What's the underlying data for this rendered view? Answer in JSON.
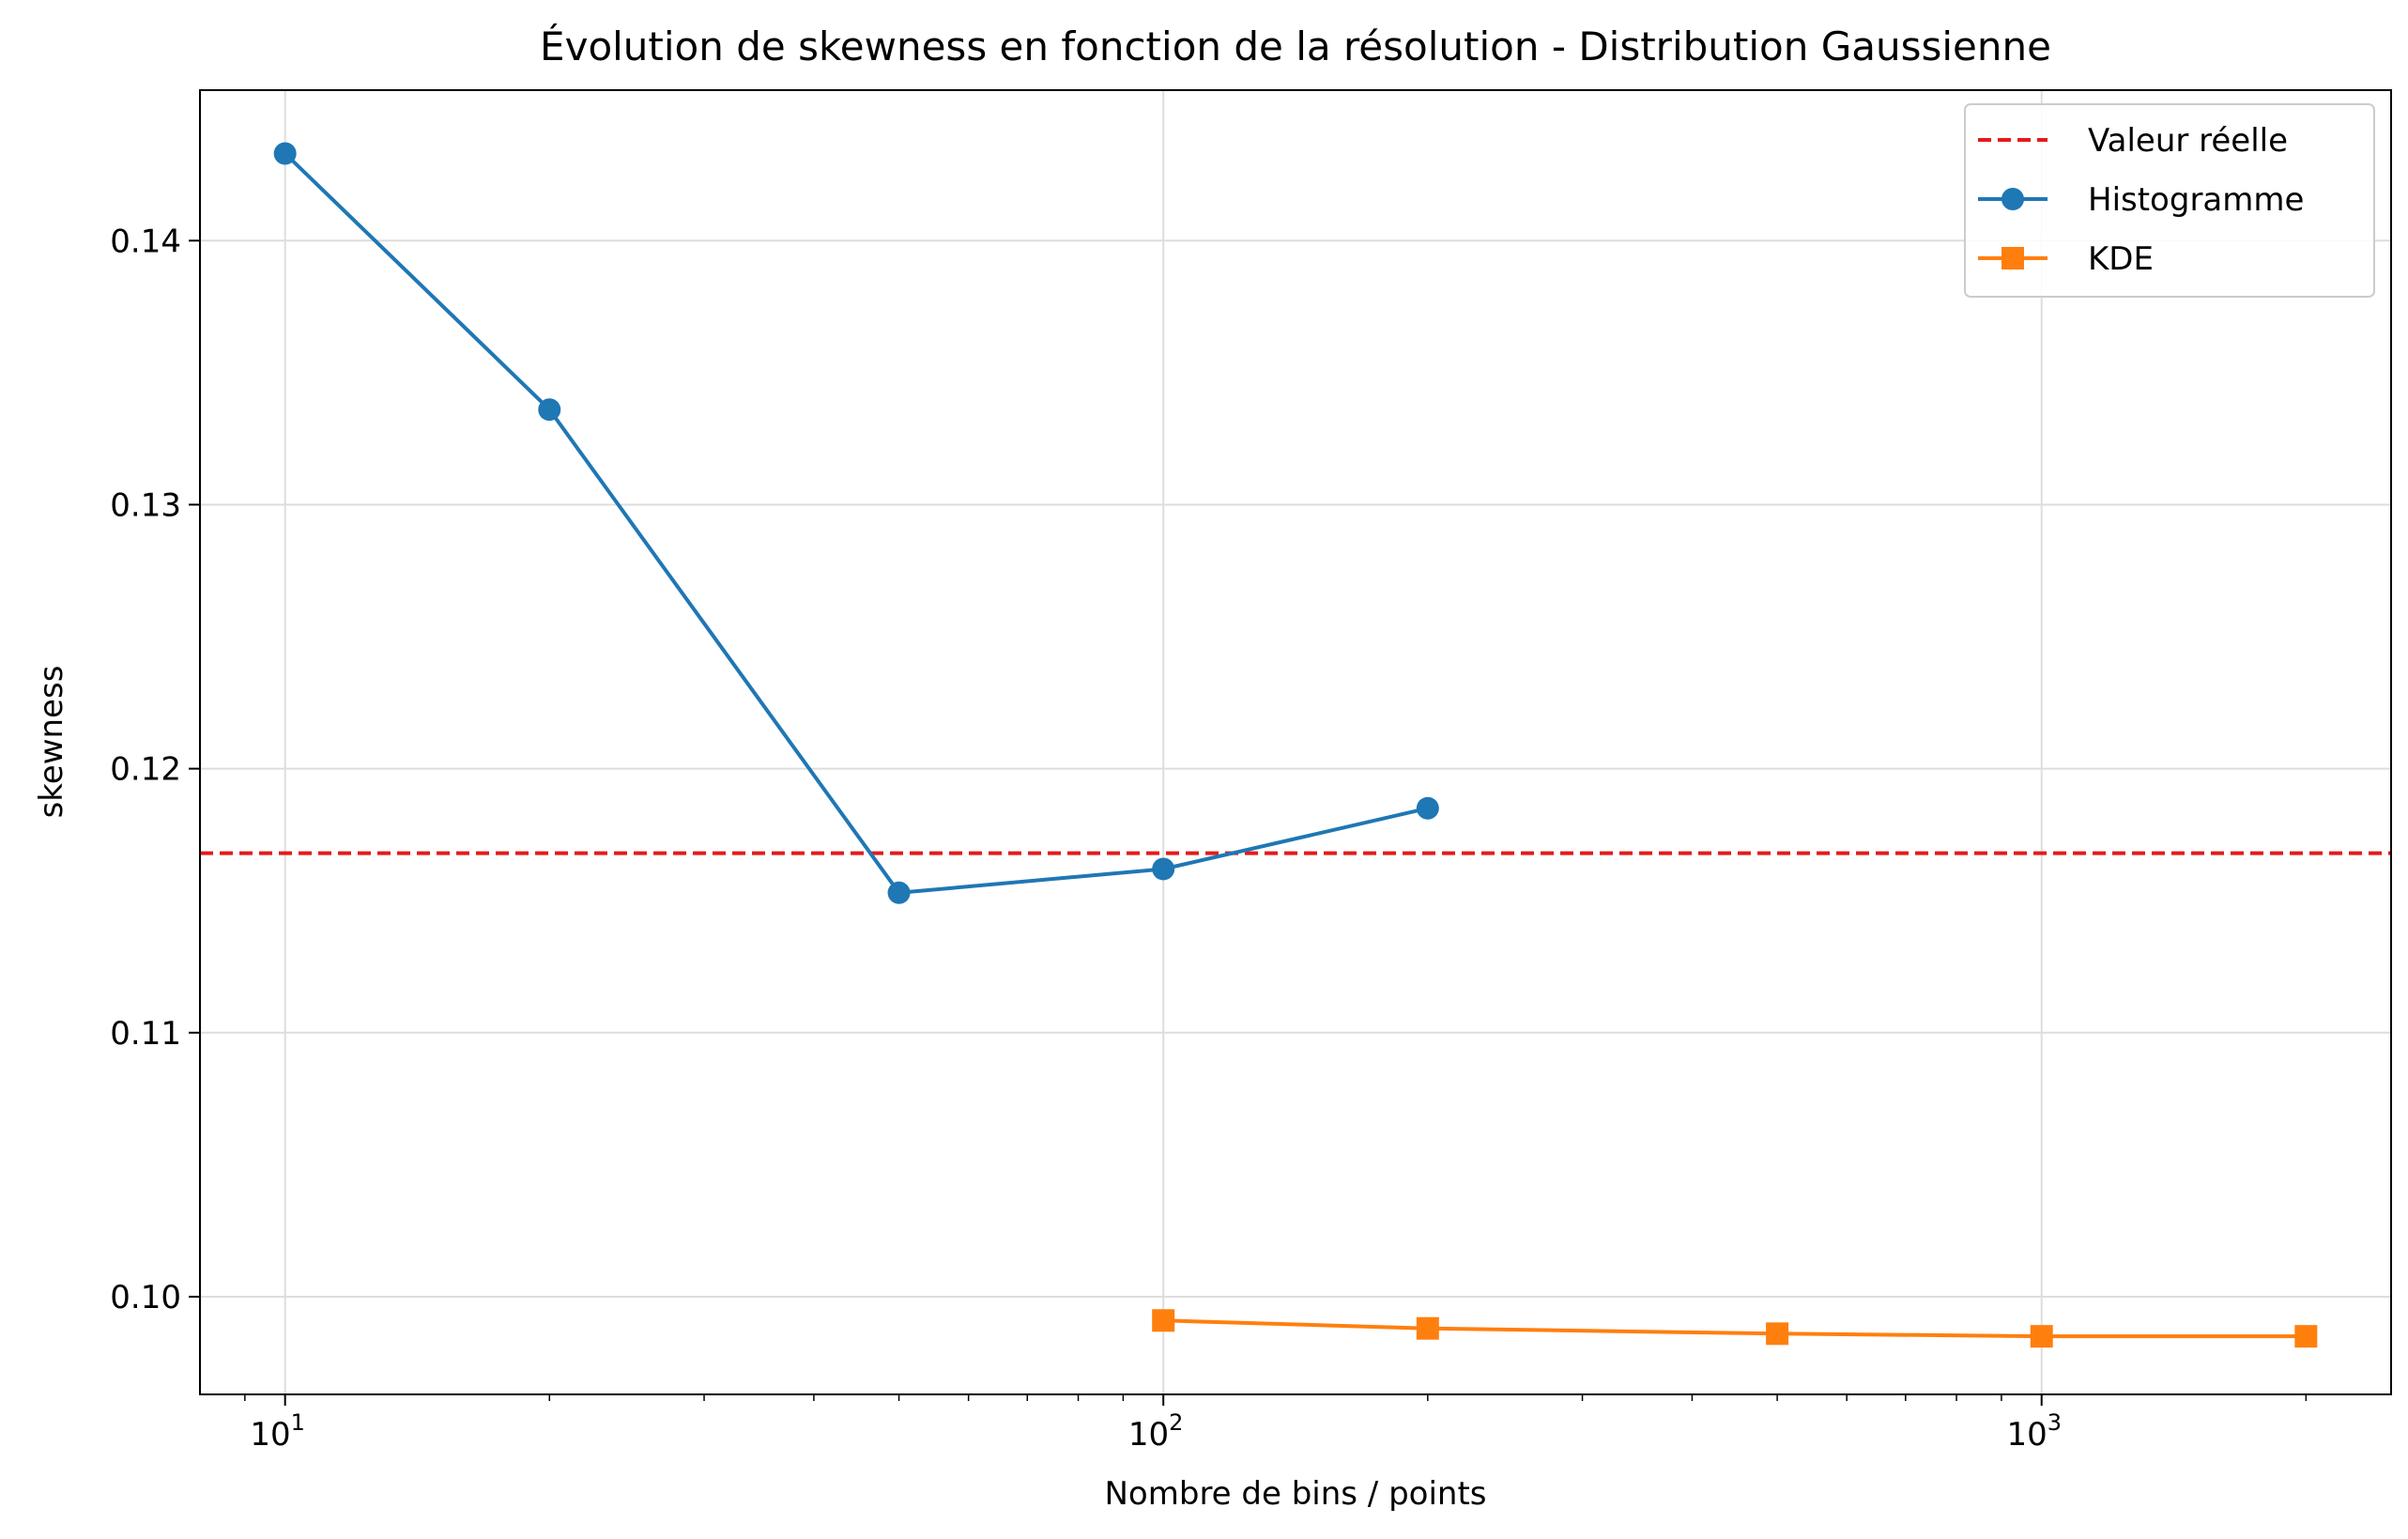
{
  "chart_data": {
    "type": "line",
    "title": "Évolution de skewness en fonction de la résolution - Distribution Gaussienne",
    "xlabel": "Nombre de bins / points",
    "ylabel": "skewness",
    "xscale": "log",
    "xlim": [
      8,
      2500
    ],
    "ylim": [
      0.0963,
      0.1457
    ],
    "xticks": [
      {
        "value": 10,
        "base": "10",
        "exp": "1"
      },
      {
        "value": 100,
        "base": "10",
        "exp": "2"
      },
      {
        "value": 1000,
        "base": "10",
        "exp": "3"
      }
    ],
    "yticks": [
      {
        "value": 0.1,
        "label": "0.10"
      },
      {
        "value": 0.11,
        "label": "0.11"
      },
      {
        "value": 0.12,
        "label": "0.12"
      },
      {
        "value": 0.13,
        "label": "0.13"
      },
      {
        "value": 0.14,
        "label": "0.14"
      }
    ],
    "grid": true,
    "legend_position": "top-right",
    "reference_line": {
      "name": "Valeur réelle",
      "value": 0.1168,
      "color": "#e41a1c",
      "style": "dashed"
    },
    "series": [
      {
        "name": "Histogramme",
        "color": "#1f77b4",
        "marker": "circle",
        "x": [
          10,
          20,
          50,
          100,
          200
        ],
        "y": [
          0.1433,
          0.1336,
          0.1153,
          0.1162,
          0.1185
        ]
      },
      {
        "name": "KDE",
        "color": "#ff7f0e",
        "marker": "square",
        "x": [
          100,
          200,
          500,
          1000,
          2000
        ],
        "y": [
          0.0991,
          0.0988,
          0.0986,
          0.0985,
          0.0985
        ]
      }
    ]
  }
}
